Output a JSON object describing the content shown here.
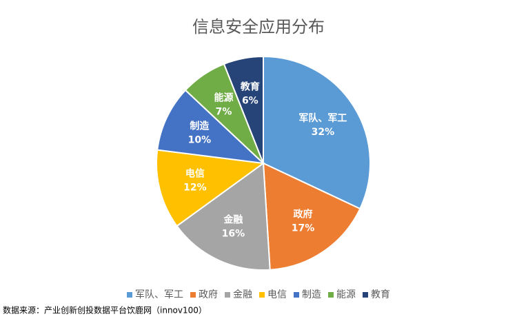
{
  "chart_data": {
    "type": "pie",
    "title": "信息安全应用分布",
    "categories": [
      "军队、军工",
      "政府",
      "金融",
      "电信",
      "制造",
      "能源",
      "教育"
    ],
    "values": [
      32,
      17,
      16,
      12,
      10,
      7,
      6
    ],
    "value_labels": [
      "32%",
      "17%",
      "16%",
      "12%",
      "10%",
      "7%",
      "6%"
    ],
    "colors": [
      "#5b9bd5",
      "#ed7d31",
      "#a5a5a5",
      "#ffc000",
      "#4472c4",
      "#70ad47",
      "#264478"
    ],
    "legend": "bottom",
    "source": "数据来源：产业创新创投数据平台饮鹿网（innov100）"
  }
}
